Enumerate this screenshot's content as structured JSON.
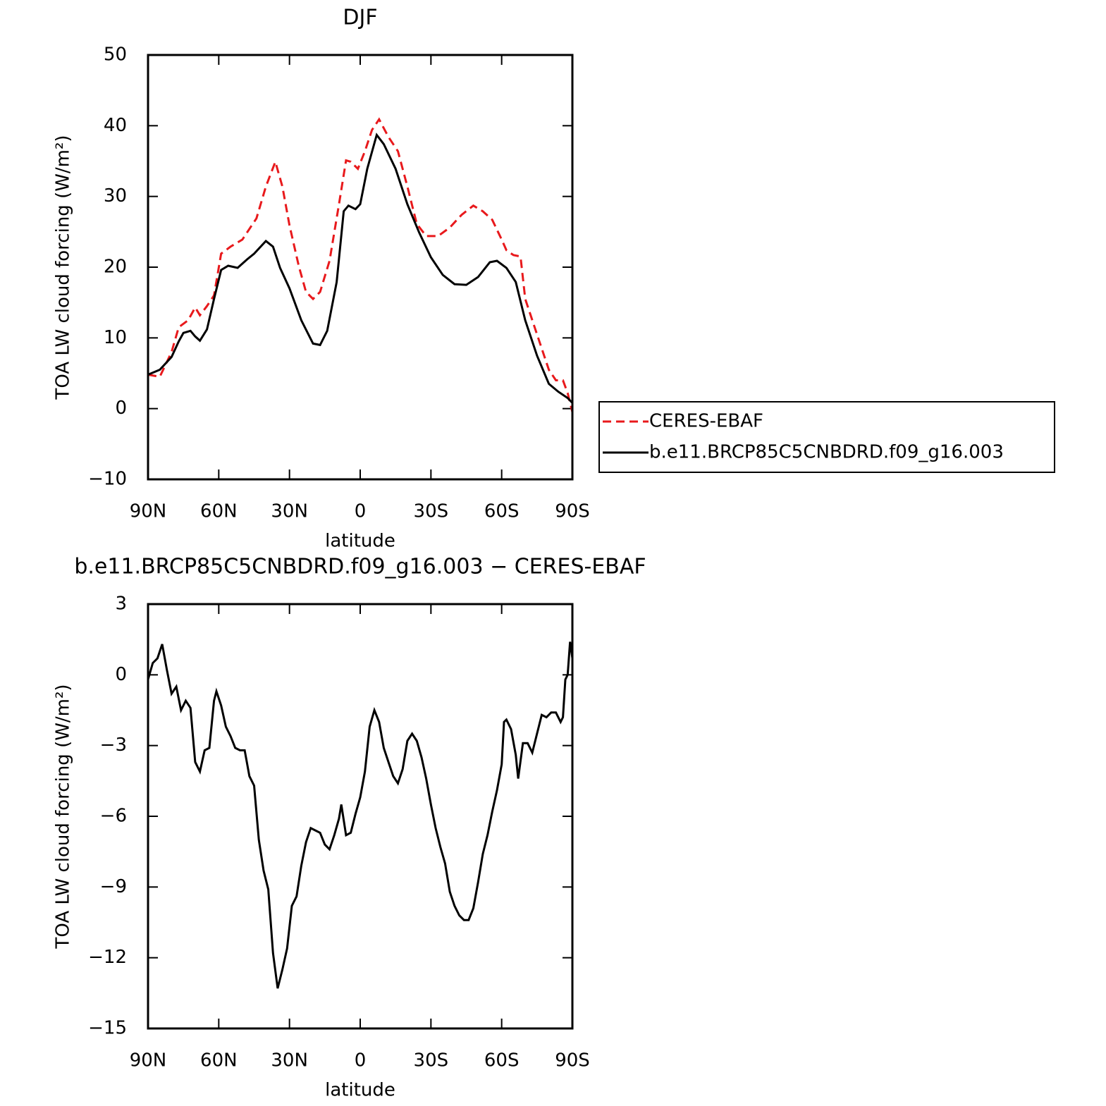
{
  "chart_data": [
    {
      "type": "line",
      "title": "DJF",
      "xlabel": "latitude",
      "ylabel": "TOA LW cloud forcing (W/m²)",
      "xlim": [
        90,
        -90
      ],
      "ylim": [
        -10,
        50
      ],
      "xticks": [
        {
          "value": 90,
          "label": "90N"
        },
        {
          "value": 60,
          "label": "60N"
        },
        {
          "value": 30,
          "label": "30N"
        },
        0,
        {
          "value": -30,
          "label": "30S"
        },
        {
          "value": -60,
          "label": "60S"
        },
        {
          "value": -90,
          "label": "90S"
        }
      ],
      "yticks": [
        {
          "value": -10,
          "label": "−10"
        },
        0,
        10,
        20,
        30,
        40,
        50
      ],
      "legend": "outside-right",
      "series": [
        {
          "name": "CERES-EBAF",
          "color": "#e8191c",
          "style": "dashed",
          "x": [
            90,
            85,
            80,
            77,
            73,
            70,
            68,
            65,
            62,
            59,
            55,
            50,
            47,
            44,
            40,
            36,
            33,
            30,
            26,
            23,
            20,
            17,
            13,
            9,
            6,
            4,
            1,
            -2,
            -5,
            -8,
            -12,
            -16,
            -20,
            -24,
            -28,
            -33,
            -38,
            -43,
            -48,
            -52,
            -56,
            -60,
            -62,
            -65,
            -68,
            -70,
            -75,
            -80,
            -83,
            -86,
            -88,
            -90
          ],
          "values": [
            4.8,
            4.5,
            8.0,
            11.5,
            12.5,
            14.3,
            13.2,
            14.5,
            16.0,
            21.9,
            22.9,
            23.9,
            25.4,
            26.9,
            31.4,
            34.9,
            31.4,
            25.9,
            20.1,
            16.5,
            15.5,
            16.5,
            20.9,
            28.9,
            35.1,
            34.9,
            33.9,
            36.4,
            39.4,
            40.9,
            38.4,
            36.4,
            31.4,
            26.1,
            24.4,
            24.4,
            25.6,
            27.4,
            28.7,
            27.9,
            26.7,
            23.9,
            22.4,
            21.7,
            21.5,
            15.5,
            10.5,
            5.5,
            4.0,
            4.0,
            2.2,
            -0.5
          ]
        },
        {
          "name": "b.e11.BRCP85C5CNBDRD.f09_g16.003",
          "color": "#000000",
          "style": "solid",
          "x": [
            90,
            85,
            80,
            77,
            75,
            72,
            70,
            68,
            65,
            62,
            59,
            56,
            52,
            48,
            45,
            40,
            37,
            34,
            30,
            25,
            20,
            17,
            14,
            10,
            7,
            5,
            2,
            0,
            -3,
            -7,
            -10,
            -15,
            -20,
            -25,
            -30,
            -35,
            -40,
            -45,
            -50,
            -55,
            -58,
            -62,
            -66,
            -70,
            -75,
            -80,
            -84,
            -88,
            -90
          ],
          "values": [
            4.8,
            5.5,
            7.3,
            9.5,
            10.7,
            11.0,
            10.2,
            9.6,
            11.2,
            15.5,
            19.6,
            20.2,
            19.9,
            21.1,
            21.9,
            23.7,
            22.9,
            19.9,
            17.0,
            12.5,
            9.2,
            9.0,
            11.0,
            17.9,
            27.9,
            28.7,
            28.2,
            28.9,
            33.9,
            38.7,
            37.4,
            33.9,
            28.9,
            24.9,
            21.4,
            18.9,
            17.6,
            17.5,
            18.6,
            20.7,
            20.9,
            19.9,
            17.9,
            12.5,
            7.5,
            3.5,
            2.4,
            1.5,
            0.8
          ]
        }
      ]
    },
    {
      "type": "line",
      "title": "b.e11.BRCP85C5CNBDRD.f09_g16.003 − CERES-EBAF",
      "xlabel": "latitude",
      "ylabel": "TOA LW cloud forcing (W/m²)",
      "xlim": [
        90,
        -90
      ],
      "ylim": [
        -15,
        3
      ],
      "xticks": [
        {
          "value": 90,
          "label": "90N"
        },
        {
          "value": 60,
          "label": "60N"
        },
        {
          "value": 30,
          "label": "30N"
        },
        0,
        {
          "value": -30,
          "label": "30S"
        },
        {
          "value": -60,
          "label": "60S"
        },
        {
          "value": -90,
          "label": "90S"
        }
      ],
      "yticks": [
        {
          "value": -15,
          "label": "−15"
        },
        {
          "value": -12,
          "label": "−12"
        },
        {
          "value": -9,
          "label": "−9"
        },
        {
          "value": -6,
          "label": "−6"
        },
        {
          "value": -3,
          "label": "−3"
        },
        0,
        3
      ],
      "series": [
        {
          "color": "#000000",
          "style": "solid",
          "x": [
            90,
            88,
            86,
            84,
            82,
            80,
            78,
            76,
            74,
            72,
            70,
            68,
            66,
            64,
            62,
            61,
            59,
            57,
            55,
            53,
            51,
            49,
            47,
            45,
            43,
            41,
            39,
            37,
            35,
            33,
            31,
            29,
            27,
            25,
            23,
            21,
            19,
            17,
            15,
            13,
            11,
            9,
            8,
            6,
            4,
            2,
            0,
            -2,
            -4,
            -6,
            -8,
            -10,
            -12,
            -14,
            -16,
            -18,
            -20,
            -22,
            -24,
            -26,
            -28,
            -30,
            -32,
            -34,
            -36,
            -38,
            -40,
            -42,
            -44,
            -46,
            -48,
            -50,
            -52,
            -54,
            -56,
            -58,
            -60,
            -61,
            -62,
            -64,
            -66,
            -67,
            -69,
            -71,
            -73,
            -75,
            -77,
            -79,
            -81,
            -83,
            -85,
            -86,
            -87,
            -88,
            -89,
            -90
          ],
          "values": [
            -0.2,
            0.5,
            0.7,
            1.3,
            0.2,
            -0.8,
            -0.5,
            -1.5,
            -1.1,
            -1.4,
            -3.7,
            -4.1,
            -3.2,
            -3.1,
            -1.1,
            -0.7,
            -1.3,
            -2.2,
            -2.6,
            -3.1,
            -3.2,
            -3.2,
            -4.3,
            -4.7,
            -7.0,
            -8.3,
            -9.1,
            -11.8,
            -13.3,
            -12.5,
            -11.6,
            -9.8,
            -9.4,
            -8.1,
            -7.1,
            -6.5,
            -6.6,
            -6.7,
            -7.2,
            -7.4,
            -6.8,
            -6.1,
            -5.5,
            -6.8,
            -6.7,
            -5.9,
            -5.2,
            -4.1,
            -2.2,
            -1.5,
            -2.0,
            -3.1,
            -3.7,
            -4.3,
            -4.6,
            -4.0,
            -2.8,
            -2.5,
            -2.8,
            -3.5,
            -4.4,
            -5.5,
            -6.5,
            -7.3,
            -8.0,
            -9.2,
            -9.8,
            -10.2,
            -10.4,
            -10.4,
            -9.9,
            -8.8,
            -7.6,
            -6.8,
            -5.8,
            -4.9,
            -3.8,
            -2.0,
            -1.9,
            -2.3,
            -3.4,
            -4.4,
            -2.9,
            -2.9,
            -3.3,
            -2.5,
            -1.7,
            -1.8,
            -1.6,
            -1.6,
            -2.0,
            -1.8,
            -0.2,
            0.0,
            1.4,
            0.7
          ]
        }
      ]
    }
  ]
}
